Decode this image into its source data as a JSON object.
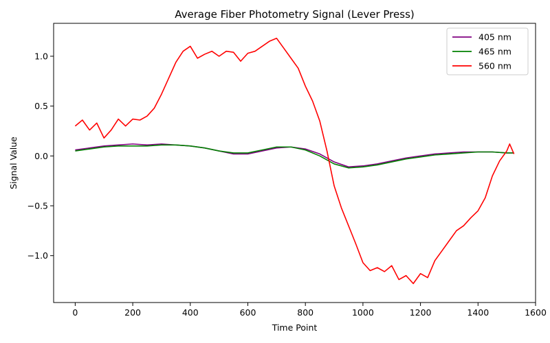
{
  "chart_data": {
    "type": "line",
    "title": "Average Fiber Photometry Signal (Lever Press)",
    "xlabel": "Time Point",
    "ylabel": "Signal Value",
    "xlim": [
      -75,
      1600
    ],
    "ylim": [
      -1.47,
      1.33
    ],
    "xticks": [
      0,
      200,
      400,
      600,
      800,
      1000,
      1200,
      1400,
      1600
    ],
    "xtick_labels": [
      "0",
      "200",
      "400",
      "600",
      "800",
      "1000",
      "1200",
      "1400",
      "1600"
    ],
    "yticks": [
      -1.0,
      -0.5,
      0.0,
      0.5,
      1.0
    ],
    "ytick_labels": [
      "−1.0",
      "−0.5",
      "0.0",
      "0.5",
      "1.0"
    ],
    "grid": false,
    "legend_position": "upper-right",
    "series": [
      {
        "name": "405 nm",
        "color": "#800080",
        "x": [
          0,
          50,
          100,
          150,
          200,
          250,
          300,
          350,
          400,
          450,
          500,
          550,
          600,
          650,
          700,
          750,
          800,
          850,
          900,
          950,
          1000,
          1050,
          1100,
          1150,
          1200,
          1250,
          1300,
          1350,
          1400,
          1450,
          1500,
          1525
        ],
        "y": [
          0.06,
          0.08,
          0.1,
          0.11,
          0.12,
          0.11,
          0.12,
          0.11,
          0.1,
          0.08,
          0.05,
          0.02,
          0.02,
          0.05,
          0.08,
          0.09,
          0.07,
          0.02,
          -0.06,
          -0.11,
          -0.1,
          -0.08,
          -0.05,
          -0.02,
          0.0,
          0.02,
          0.03,
          0.04,
          0.04,
          0.04,
          0.03,
          0.03
        ]
      },
      {
        "name": "465 nm",
        "color": "#008000",
        "x": [
          0,
          50,
          100,
          150,
          200,
          250,
          300,
          350,
          400,
          450,
          500,
          550,
          600,
          650,
          700,
          750,
          800,
          850,
          900,
          950,
          1000,
          1050,
          1100,
          1150,
          1200,
          1250,
          1300,
          1350,
          1400,
          1450,
          1500,
          1525
        ],
        "y": [
          0.05,
          0.07,
          0.09,
          0.1,
          0.1,
          0.1,
          0.11,
          0.11,
          0.1,
          0.08,
          0.05,
          0.03,
          0.03,
          0.06,
          0.09,
          0.09,
          0.06,
          0.0,
          -0.08,
          -0.12,
          -0.11,
          -0.09,
          -0.06,
          -0.03,
          -0.01,
          0.01,
          0.02,
          0.03,
          0.04,
          0.04,
          0.03,
          0.03
        ]
      },
      {
        "name": "560 nm",
        "color": "#ff0000",
        "x": [
          0,
          25,
          50,
          75,
          100,
          125,
          150,
          175,
          200,
          225,
          250,
          275,
          300,
          325,
          350,
          375,
          400,
          425,
          450,
          475,
          500,
          525,
          550,
          575,
          600,
          625,
          650,
          675,
          700,
          725,
          750,
          775,
          800,
          825,
          850,
          875,
          900,
          925,
          950,
          975,
          1000,
          1025,
          1050,
          1075,
          1100,
          1125,
          1150,
          1175,
          1200,
          1225,
          1250,
          1275,
          1300,
          1325,
          1350,
          1375,
          1400,
          1425,
          1450,
          1475,
          1500,
          1510,
          1525
        ],
        "y": [
          0.3,
          0.36,
          0.26,
          0.33,
          0.18,
          0.26,
          0.37,
          0.3,
          0.37,
          0.36,
          0.4,
          0.48,
          0.62,
          0.78,
          0.94,
          1.05,
          1.1,
          0.98,
          1.02,
          1.05,
          1.0,
          1.05,
          1.04,
          0.95,
          1.03,
          1.05,
          1.1,
          1.15,
          1.18,
          1.08,
          0.98,
          0.88,
          0.7,
          0.55,
          0.35,
          0.05,
          -0.3,
          -0.52,
          -0.7,
          -0.88,
          -1.07,
          -1.15,
          -1.12,
          -1.16,
          -1.1,
          -1.24,
          -1.2,
          -1.28,
          -1.18,
          -1.22,
          -1.05,
          -0.95,
          -0.85,
          -0.75,
          -0.7,
          -0.62,
          -0.55,
          -0.42,
          -0.2,
          -0.05,
          0.05,
          0.12,
          0.02
        ]
      }
    ]
  }
}
